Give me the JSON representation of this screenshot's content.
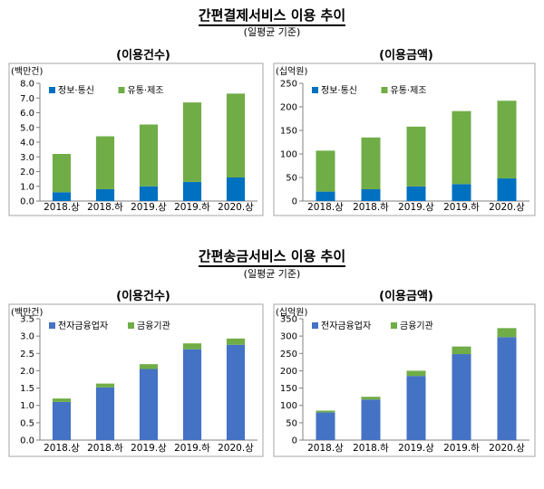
{
  "sections": [
    {
      "title": "간편결제서비스 이용 추이",
      "subtitle": "(일평균 기준)",
      "panel_titles": [
        "(이용건수)",
        "(이용금액)"
      ]
    },
    {
      "title": "간편송금서비스 이용 추이",
      "subtitle": "(일평균 기준)",
      "panel_titles": [
        "(이용건수)",
        "(이용금액)"
      ]
    }
  ],
  "colors": {
    "series_a": "#0070c0",
    "series_b": "#70ad47",
    "series_c": "#4472c4",
    "series_d": "#70ad47"
  },
  "chart_data": [
    {
      "type": "bar",
      "stacked": true,
      "title": "(이용건수)",
      "ylabel": "(백만건)",
      "categories": [
        "2018.상",
        "2018.하",
        "2019.상",
        "2019.하",
        "2020.상"
      ],
      "series": [
        {
          "name": "정보·통신",
          "values": [
            0.6,
            0.8,
            1.0,
            1.3,
            1.6
          ],
          "color": "#0070c0"
        },
        {
          "name": "유통·제조",
          "values": [
            2.6,
            3.6,
            4.2,
            5.4,
            5.7
          ],
          "color": "#70ad47"
        }
      ],
      "ylim": [
        0,
        8.0
      ],
      "yticks": [
        "0.0",
        "1.0",
        "2.0",
        "3.0",
        "4.0",
        "5.0",
        "6.0",
        "7.0",
        "8.0"
      ],
      "legend": "top-left",
      "grid": false
    },
    {
      "type": "bar",
      "stacked": true,
      "title": "(이용금액)",
      "ylabel": "(십억원)",
      "categories": [
        "2018.상",
        "2018.하",
        "2019.상",
        "2019.하",
        "2020.상"
      ],
      "series": [
        {
          "name": "정보·통신",
          "values": [
            20,
            25,
            31,
            36,
            48
          ],
          "color": "#0070c0"
        },
        {
          "name": "유통·제조",
          "values": [
            87,
            110,
            127,
            155,
            165
          ],
          "color": "#70ad47"
        }
      ],
      "ylim": [
        0,
        250
      ],
      "yticks": [
        "0",
        "50",
        "100",
        "150",
        "200",
        "250"
      ],
      "legend": "top-left",
      "grid": false
    },
    {
      "type": "bar",
      "stacked": true,
      "title": "(이용건수)",
      "ylabel": "(백만건)",
      "categories": [
        "2018.상",
        "2018.하",
        "2019.상",
        "2019.하",
        "2020.상"
      ],
      "series": [
        {
          "name": "전자금융업자",
          "values": [
            1.1,
            1.52,
            2.05,
            2.62,
            2.75
          ],
          "color": "#4472c4"
        },
        {
          "name": "금융기관",
          "values": [
            0.1,
            0.11,
            0.14,
            0.17,
            0.18
          ],
          "color": "#70ad47"
        }
      ],
      "ylim": [
        0,
        3.5
      ],
      "yticks": [
        "0.0",
        "0.5",
        "1.0",
        "1.5",
        "2.0",
        "2.5",
        "3.0",
        "3.5"
      ],
      "legend": "top-left",
      "grid": false
    },
    {
      "type": "bar",
      "stacked": true,
      "title": "(이용금액)",
      "ylabel": "(십억원)",
      "categories": [
        "2018.상",
        "2018.하",
        "2019.상",
        "2019.하",
        "2020.상"
      ],
      "series": [
        {
          "name": "전자금융업자",
          "values": [
            80,
            117,
            185,
            248,
            297
          ],
          "color": "#4472c4"
        },
        {
          "name": "금융기관",
          "values": [
            5,
            8,
            15,
            22,
            26
          ],
          "color": "#70ad47"
        }
      ],
      "ylim": [
        0,
        350
      ],
      "yticks": [
        "0",
        "50",
        "100",
        "150",
        "200",
        "250",
        "300",
        "350"
      ],
      "legend": "top-left",
      "grid": false
    }
  ]
}
